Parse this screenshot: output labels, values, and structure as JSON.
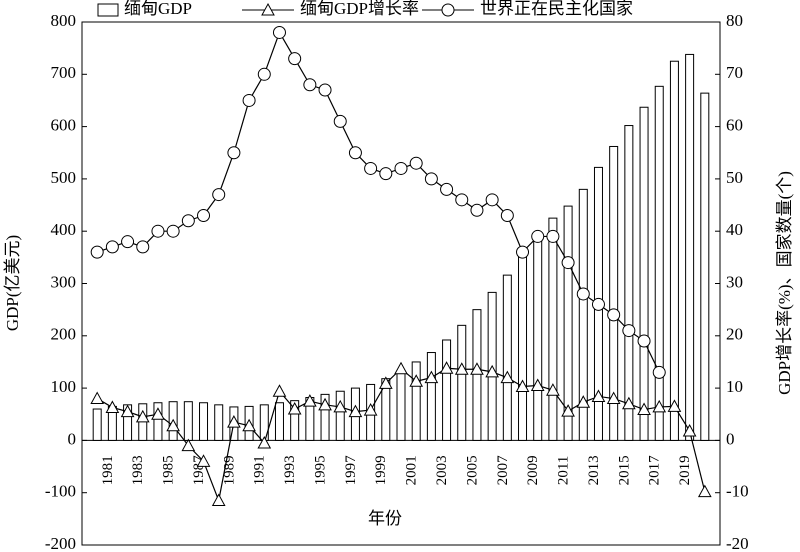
{
  "chart_data": {
    "type": "bar-line",
    "x": [
      1980,
      1981,
      1982,
      1983,
      1984,
      1985,
      1986,
      1987,
      1988,
      1989,
      1990,
      1991,
      1992,
      1993,
      1994,
      1995,
      1996,
      1997,
      1998,
      1999,
      2000,
      2001,
      2002,
      2003,
      2004,
      2005,
      2006,
      2007,
      2008,
      2009,
      2010,
      2011,
      2012,
      2013,
      2014,
      2015,
      2016,
      2017,
      2018,
      2019,
      2020
    ],
    "series": [
      {
        "name": "缅甸GDP",
        "kind": "bar",
        "axis": "y",
        "color": "#000000",
        "values": [
          60,
          65,
          68,
          70,
          72,
          74,
          74,
          72,
          68,
          64,
          65,
          68,
          72,
          76,
          82,
          88,
          94,
          100,
          107,
          118,
          132,
          150,
          168,
          192,
          220,
          250,
          283,
          316,
          355,
          390,
          425,
          448,
          480,
          522,
          562,
          602,
          637,
          677,
          725,
          738,
          664
        ]
      },
      {
        "name": "缅甸GDP增长率",
        "kind": "line",
        "marker": "triangle",
        "axis": "y2",
        "color": "#000000",
        "values": [
          8,
          6.3,
          5.5,
          4.5,
          5,
          2.8,
          -1,
          -4,
          -11.5,
          3.5,
          2.8,
          -0.5,
          9.4,
          6,
          7.5,
          6.8,
          6.4,
          5.5,
          5.8,
          10.9,
          13.7,
          11.3,
          12,
          13.8,
          13.6,
          13.6,
          13.1,
          12,
          10.3,
          10.5,
          9.6,
          5.6,
          7.3,
          8.4,
          8,
          7,
          5.9,
          6.4,
          6.5,
          1.8,
          -9.8
        ]
      },
      {
        "name": "世界正在民主化国家",
        "kind": "line",
        "marker": "circle",
        "axis": "y2",
        "color": "#000000",
        "values": [
          36,
          37,
          38,
          37,
          40,
          40,
          42,
          43,
          47,
          55,
          65,
          70,
          78,
          73,
          68,
          67,
          61,
          55,
          52,
          51,
          52,
          53,
          50,
          48,
          46,
          44,
          46,
          43,
          36,
          39,
          39,
          34,
          28,
          26,
          24,
          21,
          19,
          13,
          null,
          null,
          null
        ]
      }
    ],
    "xlabel": "年份",
    "ylabel": "GDP(亿美元)",
    "y2label": "GDP增长率(%)、国家数量(个)",
    "xlim": [
      1979,
      2021
    ],
    "xticks": [
      1981,
      1983,
      1985,
      1987,
      1989,
      1991,
      1993,
      1995,
      1997,
      1999,
      2001,
      2003,
      2005,
      2007,
      2009,
      2011,
      2013,
      2015,
      2017,
      2019
    ],
    "ylim": [
      -200,
      800
    ],
    "yticks": [
      -200,
      -100,
      0,
      100,
      200,
      300,
      400,
      500,
      600,
      700,
      800
    ],
    "y2lim": [
      -20,
      80
    ],
    "y2ticks": [
      -20,
      -10,
      0,
      10,
      20,
      30,
      40,
      50,
      60,
      70,
      80
    ],
    "legend": "top"
  }
}
